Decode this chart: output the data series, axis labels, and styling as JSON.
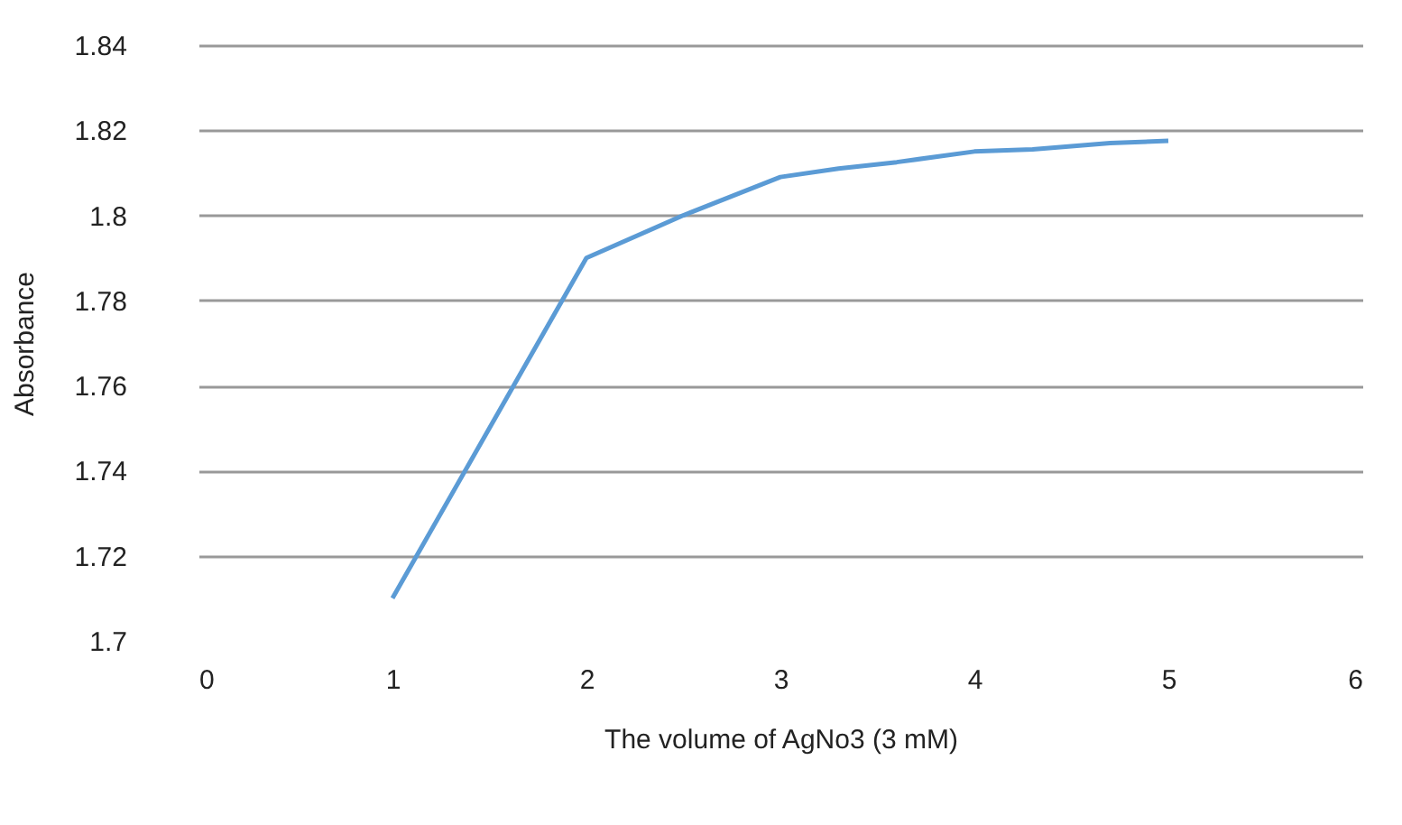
{
  "chart_data": {
    "type": "line",
    "xlabel": "The volume of AgNo3 (3 mM)",
    "ylabel": "Absorbance",
    "x": [
      1,
      2,
      2.5,
      3,
      3.3,
      3.6,
      4,
      4.3,
      4.7,
      5
    ],
    "series": [
      {
        "color": "#5b9bd5",
        "values": [
          1.71,
          1.79,
          1.8,
          1.809,
          1.811,
          1.8125,
          1.815,
          1.8155,
          1.817,
          1.8175
        ]
      }
    ],
    "xlim": [
      0,
      6
    ],
    "xticks": [
      0,
      1,
      2,
      3,
      4,
      5,
      6
    ],
    "ylim": [
      1.7,
      1.84
    ],
    "yticks": [
      1.7,
      1.72,
      1.74,
      1.76,
      1.78,
      1.8,
      1.82,
      1.84
    ],
    "grid": "y",
    "marker": "none",
    "line_style": "solid"
  }
}
